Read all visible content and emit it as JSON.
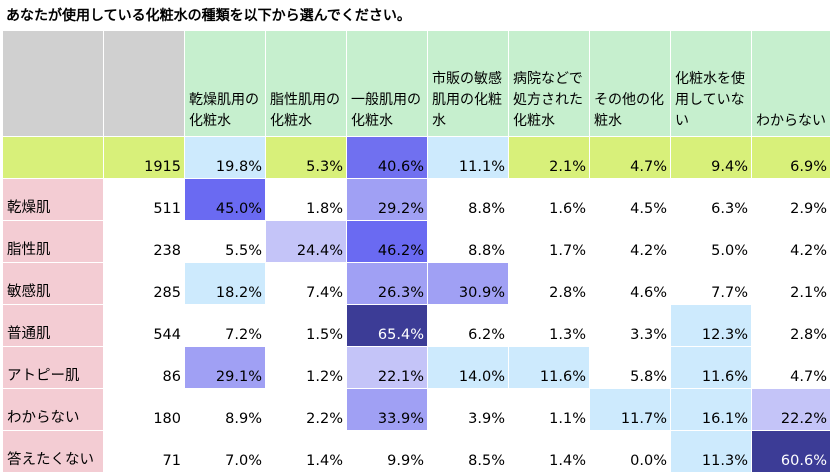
{
  "title": "あなたが使用している化粧水の種類を以下から選んでください。",
  "chart_data": {
    "type": "table",
    "columns": [
      "",
      "",
      "乾燥肌用の化粧水",
      "脂性肌用の化粧水",
      "一般肌用の化粧水",
      "市販の敏感肌用の化粧水",
      "病院などで処方された化粧水",
      "その他の化粧水",
      "化粧水を使用していない",
      "わからない"
    ],
    "total": {
      "n": "1915",
      "values": [
        "19.8%",
        "5.3%",
        "40.6%",
        "11.1%",
        "2.1%",
        "4.7%",
        "9.4%",
        "6.9%"
      ]
    },
    "rows": [
      {
        "label": "乾燥肌",
        "n": "511",
        "values": [
          "45.0%",
          "1.8%",
          "29.2%",
          "8.8%",
          "1.6%",
          "4.5%",
          "6.3%",
          "2.9%"
        ]
      },
      {
        "label": "脂性肌",
        "n": "238",
        "values": [
          "5.5%",
          "24.4%",
          "46.2%",
          "8.8%",
          "1.7%",
          "4.2%",
          "5.0%",
          "4.2%"
        ]
      },
      {
        "label": "敏感肌",
        "n": "285",
        "values": [
          "18.2%",
          "7.4%",
          "26.3%",
          "30.9%",
          "2.8%",
          "4.6%",
          "7.7%",
          "2.1%"
        ]
      },
      {
        "label": "普通肌",
        "n": "544",
        "values": [
          "7.2%",
          "1.5%",
          "65.4%",
          "6.2%",
          "1.3%",
          "3.3%",
          "12.3%",
          "2.8%"
        ]
      },
      {
        "label": "アトピー肌",
        "n": "86",
        "values": [
          "29.1%",
          "1.2%",
          "22.1%",
          "14.0%",
          "11.6%",
          "5.8%",
          "11.6%",
          "4.7%"
        ]
      },
      {
        "label": "わからない",
        "n": "180",
        "values": [
          "8.9%",
          "2.2%",
          "33.9%",
          "3.9%",
          "1.1%",
          "11.7%",
          "16.1%",
          "22.2%"
        ]
      },
      {
        "label": "答えたくない",
        "n": "71",
        "values": [
          "7.0%",
          "1.4%",
          "9.9%",
          "8.5%",
          "1.4%",
          "0.0%",
          "11.3%",
          "60.6%"
        ]
      }
    ]
  }
}
